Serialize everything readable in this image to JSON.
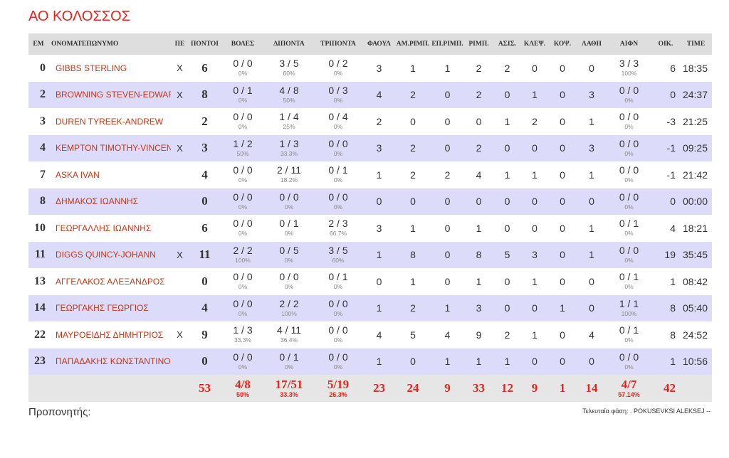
{
  "title": "ΑΟ ΚΟΛΟΣΣΟΣ",
  "table": {
    "headers": [
      "ΕΜ",
      "ΟΝΟΜΑΤΕΠΩΝΥΜΟ",
      "ΠΕ",
      "ΠΟΝΤΟΙ",
      "ΒΟΛΕΣ",
      "ΔΙΠΟΝΤΑ",
      "ΤΡΙΠΟΝΤΑ",
      "ΦΑΟΥΛ",
      "ΑΜ.ΡΙΜΠ.",
      "ΕΠ.ΡΙΜΠ.",
      "ΡΙΜΠ.",
      "ΑΣΙΣ.",
      "ΚΛΕΨ.",
      "ΚΟΨ.",
      "ΛΑΘΗ",
      "ΑΙΦΝ",
      "ΟΙΚ.",
      "TIME"
    ],
    "rows": [
      [
        "0",
        "GIBBS STERLING",
        "X",
        "6",
        [
          "0 / 0",
          "0%"
        ],
        [
          "3 / 5",
          "60%"
        ],
        [
          "0 / 2",
          "0%"
        ],
        "3",
        "1",
        "1",
        "2",
        "2",
        "0",
        "0",
        "0",
        [
          "3 / 3",
          "100%"
        ],
        "6",
        "18:35"
      ],
      [
        "2",
        "BROWNING STEVEN-EDWARD",
        "X",
        "8",
        [
          "0 / 1",
          "0%"
        ],
        [
          "4 / 8",
          "50%"
        ],
        [
          "0 / 3",
          "0%"
        ],
        "4",
        "2",
        "0",
        "2",
        "0",
        "1",
        "0",
        "3",
        [
          "0 / 0",
          "0%"
        ],
        "0",
        "24:37"
      ],
      [
        "3",
        "DUREN TYREEK-ANDREW",
        null,
        "2",
        [
          "0 / 0",
          "0%"
        ],
        [
          "1 / 4",
          "25%"
        ],
        [
          "0 / 4",
          "0%"
        ],
        "2",
        "0",
        "0",
        "0",
        "1",
        "2",
        "0",
        "1",
        [
          "0 / 0",
          "0%"
        ],
        "-3",
        "21:25"
      ],
      [
        "4",
        "KEMPTON TIMOTHY-VINCENT",
        "X",
        "3",
        [
          "1 / 2",
          "50%"
        ],
        [
          "1 / 3",
          "33.3%"
        ],
        [
          "0 / 0",
          "0%"
        ],
        "3",
        "2",
        "0",
        "2",
        "0",
        "0",
        "0",
        "3",
        [
          "0 / 0",
          "0%"
        ],
        "-1",
        "09:25"
      ],
      [
        "7",
        "ASKA IVAN",
        null,
        "4",
        [
          "0 / 0",
          "0%"
        ],
        [
          "2 / 11",
          "18.2%"
        ],
        [
          "0 / 1",
          "0%"
        ],
        "1",
        "2",
        "2",
        "4",
        "1",
        "1",
        "0",
        "1",
        [
          "0 / 0",
          "0%"
        ],
        "-1",
        "21:42"
      ],
      [
        "8",
        "ΔΗΜΑΚΟΣ ΙΩΑΝΝΗΣ",
        null,
        "0",
        [
          "0 / 0",
          "0%"
        ],
        [
          "0 / 0",
          "0%"
        ],
        [
          "0 / 0",
          "0%"
        ],
        "0",
        "0",
        "0",
        "0",
        "0",
        "0",
        "0",
        "0",
        [
          "0 / 0",
          "0%"
        ],
        "0",
        "00:00"
      ],
      [
        "10",
        "ΓΕΩΡΓΑΛΛΗΣ ΙΩΑΝΝΗΣ",
        null,
        "6",
        [
          "0 / 0",
          "0%"
        ],
        [
          "0 / 1",
          "0%"
        ],
        [
          "2 / 3",
          "66.7%"
        ],
        "3",
        "1",
        "0",
        "1",
        "0",
        "0",
        "0",
        "1",
        [
          "0 / 1",
          "0%"
        ],
        "4",
        "18:21"
      ],
      [
        "11",
        "DIGGS QUINCY-JOHANN",
        "X",
        "11",
        [
          "2 / 2",
          "100%"
        ],
        [
          "0 / 5",
          "0%"
        ],
        [
          "3 / 5",
          "60%"
        ],
        "1",
        "8",
        "0",
        "8",
        "5",
        "3",
        "0",
        "1",
        [
          "0 / 0",
          "0%"
        ],
        "19",
        "35:45"
      ],
      [
        "13",
        "ΑΓΓΕΛΑΚΟΣ ΑΛΕΞΑΝΔΡΟΣ",
        null,
        "0",
        [
          "0 / 0",
          "0%"
        ],
        [
          "0 / 0",
          "0%"
        ],
        [
          "0 / 1",
          "0%"
        ],
        "0",
        "1",
        "0",
        "1",
        "0",
        "1",
        "0",
        "0",
        [
          "0 / 1",
          "0%"
        ],
        "1",
        "08:42"
      ],
      [
        "14",
        "ΓΕΩΡΓΑΚΗΣ ΓΕΩΡΓΙΟΣ",
        null,
        "4",
        [
          "0 / 0",
          "0%"
        ],
        [
          "2 / 2",
          "100%"
        ],
        [
          "0 / 0",
          "0%"
        ],
        "1",
        "2",
        "1",
        "3",
        "0",
        "0",
        "1",
        "0",
        [
          "1 / 1",
          "100%"
        ],
        "8",
        "05:40"
      ],
      [
        "22",
        "ΜΑΥΡΟΕΙΔΗΣ ΔΗΜΗΤΡΙΟΣ",
        "X",
        "9",
        [
          "1 / 3",
          "33.3%"
        ],
        [
          "4 / 11",
          "36.4%"
        ],
        [
          "0 / 0",
          "0%"
        ],
        "4",
        "5",
        "4",
        "9",
        "2",
        "1",
        "0",
        "4",
        [
          "0 / 1",
          "0%"
        ],
        "8",
        "24:52"
      ],
      [
        "23",
        "ΠΑΠΑΔΑΚΗΣ ΚΩΝΣΤΑΝΤΙΝΟΣ",
        null,
        "0",
        [
          "0 / 0",
          "0%"
        ],
        [
          "0 / 1",
          "0%"
        ],
        [
          "0 / 0",
          "0%"
        ],
        "1",
        "0",
        "1",
        "1",
        "1",
        "0",
        "0",
        "0",
        [
          "0 / 0",
          "0%"
        ],
        "1",
        "10:56"
      ]
    ],
    "totals": [
      null,
      null,
      null,
      "53",
      [
        "4/8",
        "50%"
      ],
      [
        "17/51",
        "33.3%"
      ],
      [
        "5/19",
        "26.3%"
      ],
      "23",
      "24",
      "9",
      "33",
      "12",
      "9",
      "1",
      "14",
      [
        "4/7",
        "57.14%"
      ],
      "42",
      null
    ]
  },
  "footer": {
    "coach": "Προπονητής:",
    "last_play": "Τελευταία φάση: . POKUSEVKSI ALEKSEJ --"
  }
}
